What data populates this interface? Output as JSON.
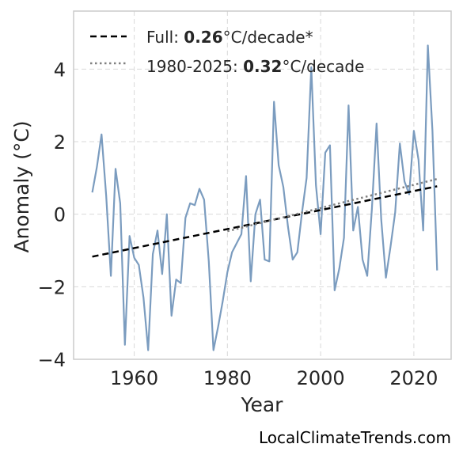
{
  "chart_data": {
    "type": "line",
    "xlabel": "Year",
    "ylabel": "Anomaly (°C)",
    "xlim": [
      1947,
      2028
    ],
    "ylim": [
      -4,
      5.6
    ],
    "xticks": [
      1960,
      1980,
      2000,
      2020
    ],
    "yticks": [
      -4,
      -2,
      0,
      2,
      4
    ],
    "ytick_labels": [
      "−4",
      "−2",
      "0",
      "2",
      "4"
    ],
    "grid": true,
    "legend_position": "top-left",
    "series": [
      {
        "style": "solid",
        "color": "#7b9cbf",
        "x": [
          1951,
          1952,
          1953,
          1954,
          1955,
          1956,
          1957,
          1958,
          1959,
          1960,
          1961,
          1962,
          1963,
          1964,
          1965,
          1966,
          1967,
          1968,
          1969,
          1970,
          1971,
          1972,
          1973,
          1974,
          1975,
          1976,
          1977,
          1978,
          1979,
          1980,
          1981,
          1982,
          1983,
          1984,
          1985,
          1986,
          1987,
          1988,
          1989,
          1990,
          1991,
          1992,
          1993,
          1994,
          1995,
          1996,
          1997,
          1998,
          1999,
          2000,
          2001,
          2002,
          2003,
          2004,
          2005,
          2006,
          2007,
          2008,
          2009,
          2010,
          2011,
          2012,
          2013,
          2014,
          2015,
          2016,
          2017,
          2018,
          2019,
          2020,
          2021,
          2022,
          2023,
          2024,
          2025
        ],
        "y": [
          0.6,
          1.3,
          2.2,
          0.5,
          -1.7,
          1.25,
          0.3,
          -3.6,
          -0.6,
          -1.2,
          -1.4,
          -2.3,
          -3.75,
          -1.1,
          -0.45,
          -1.65,
          0.0,
          -2.8,
          -1.8,
          -1.9,
          -0.1,
          0.3,
          0.25,
          0.7,
          0.4,
          -1.3,
          -3.75,
          -3.1,
          -2.4,
          -1.6,
          -1.05,
          -0.8,
          -0.55,
          1.05,
          -1.85,
          0.0,
          0.4,
          -1.25,
          -1.3,
          3.1,
          1.35,
          0.75,
          -0.35,
          -1.25,
          -1.05,
          0.05,
          1.0,
          4.05,
          0.8,
          -0.55,
          1.7,
          1.9,
          -2.1,
          -1.5,
          -0.65,
          3.0,
          -0.45,
          0.2,
          -1.25,
          -1.7,
          0.15,
          2.5,
          -0.15,
          -1.75,
          -0.9,
          0.05,
          1.95,
          0.9,
          0.55,
          2.3,
          1.5,
          -0.45,
          4.65,
          2.3,
          -1.55
        ]
      },
      {
        "name": "Full",
        "style": "dashed",
        "color": "#000000",
        "x": [
          1951,
          2025
        ],
        "y": [
          -1.17,
          0.77
        ]
      },
      {
        "name": "1980-2025",
        "style": "dotted",
        "color": "#808080",
        "x": [
          1980,
          2025
        ],
        "y": [
          -0.47,
          0.97
        ]
      }
    ]
  },
  "legend": {
    "full": {
      "prefix": "Full: ",
      "value": "0.26",
      "suffix": "°C/decade*"
    },
    "recent": {
      "prefix": "1980-2025: ",
      "value": "0.32",
      "suffix": "°C/decade"
    }
  },
  "watermark": "LocalClimateTrends.com"
}
